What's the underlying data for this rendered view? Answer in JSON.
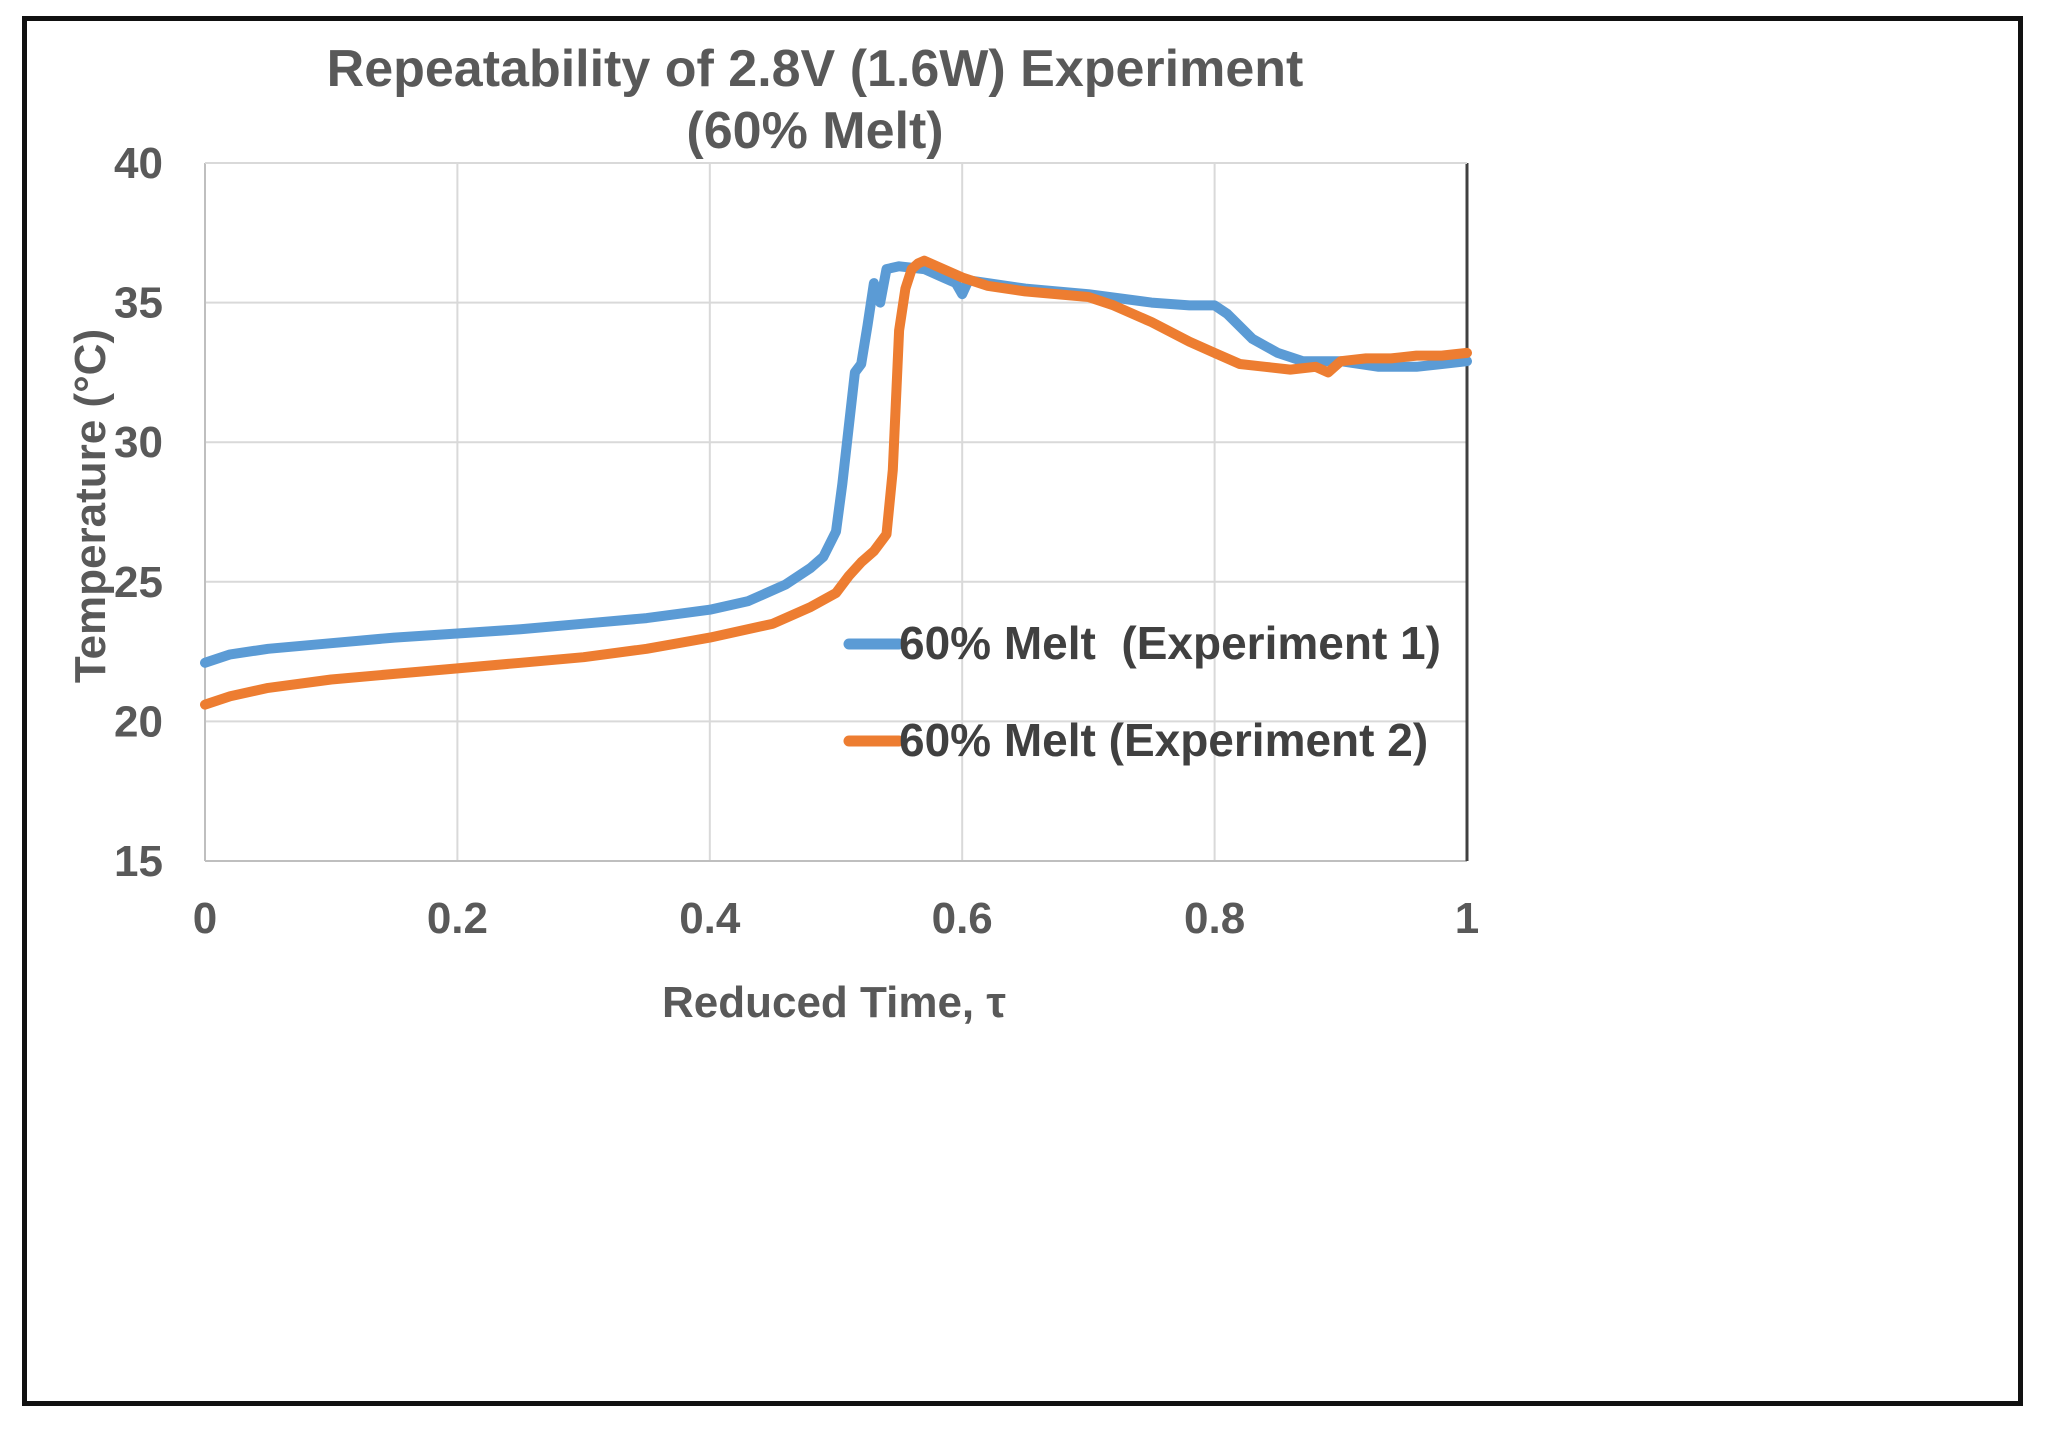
{
  "chart_data": {
    "type": "line",
    "title": [
      "Repeatability of 2.8V (1.6W) Experiment",
      "(60% Melt)"
    ],
    "xlabel": "Reduced Time, τ",
    "ylabel": "Temperature (°C)",
    "xlim": [
      0,
      1
    ],
    "ylim": [
      15,
      40
    ],
    "xticks": [
      0,
      0.2,
      0.4,
      0.6,
      0.8,
      1
    ],
    "xtick_labels": [
      "0",
      "0.2",
      "0.4",
      "0.6",
      "0.8",
      "1"
    ],
    "yticks": [
      15,
      20,
      25,
      30,
      35,
      40
    ],
    "ytick_labels": [
      "15",
      "20",
      "25",
      "30",
      "35",
      "40"
    ],
    "grid": true,
    "legend_position": "center-right",
    "series": [
      {
        "name": "60% Melt  (Experiment 1)",
        "color": "#5B9BD5",
        "x": [
          0,
          0.02,
          0.05,
          0.1,
          0.15,
          0.2,
          0.25,
          0.3,
          0.35,
          0.4,
          0.43,
          0.46,
          0.48,
          0.49,
          0.5,
          0.505,
          0.51,
          0.515,
          0.52,
          0.525,
          0.53,
          0.535,
          0.54,
          0.55,
          0.57,
          0.585,
          0.595,
          0.6,
          0.605,
          0.62,
          0.65,
          0.7,
          0.75,
          0.78,
          0.8,
          0.81,
          0.83,
          0.85,
          0.87,
          0.9,
          0.93,
          0.96,
          0.98,
          1.0
        ],
        "y": [
          22.1,
          22.4,
          22.6,
          22.8,
          23.0,
          23.15,
          23.3,
          23.5,
          23.7,
          24.0,
          24.3,
          24.9,
          25.5,
          25.9,
          26.8,
          28.5,
          30.5,
          32.5,
          32.8,
          34.2,
          35.7,
          35.0,
          36.2,
          36.3,
          36.2,
          35.9,
          35.7,
          35.3,
          35.8,
          35.7,
          35.5,
          35.3,
          35.0,
          34.9,
          34.9,
          34.6,
          33.7,
          33.2,
          32.9,
          32.9,
          32.7,
          32.7,
          32.8,
          32.9
        ]
      },
      {
        "name": "60% Melt (Experiment 2)",
        "color": "#ED7D31",
        "x": [
          0,
          0.02,
          0.05,
          0.1,
          0.15,
          0.2,
          0.25,
          0.3,
          0.35,
          0.4,
          0.45,
          0.48,
          0.5,
          0.51,
          0.52,
          0.53,
          0.54,
          0.545,
          0.548,
          0.55,
          0.555,
          0.56,
          0.565,
          0.57,
          0.58,
          0.6,
          0.62,
          0.65,
          0.7,
          0.72,
          0.75,
          0.78,
          0.8,
          0.82,
          0.84,
          0.86,
          0.88,
          0.89,
          0.9,
          0.92,
          0.94,
          0.96,
          0.98,
          1.0
        ],
        "y": [
          20.6,
          20.9,
          21.2,
          21.5,
          21.7,
          21.9,
          22.1,
          22.3,
          22.6,
          23.0,
          23.5,
          24.1,
          24.6,
          25.2,
          25.7,
          26.1,
          26.7,
          29.0,
          32.0,
          34.0,
          35.5,
          36.2,
          36.4,
          36.5,
          36.3,
          35.9,
          35.6,
          35.4,
          35.2,
          34.9,
          34.3,
          33.6,
          33.2,
          32.8,
          32.7,
          32.6,
          32.7,
          32.5,
          32.9,
          33.0,
          33.0,
          33.1,
          33.1,
          33.2
        ]
      }
    ]
  }
}
